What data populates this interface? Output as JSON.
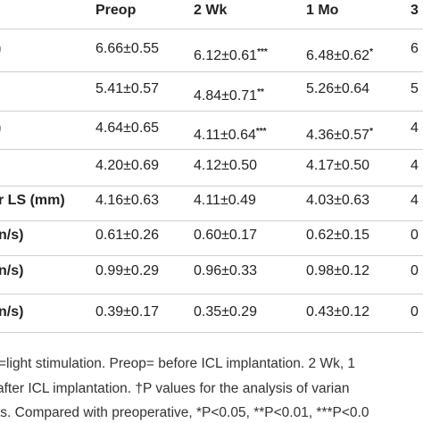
{
  "table": {
    "header": [
      "Preop",
      "2 Wk",
      "1 Mo",
      "3"
    ],
    "rows": [
      {
        "label": ")",
        "cells": [
          {
            "text": "6.66±0.55"
          },
          {
            "text": "6.12±0.61",
            "sup": "***"
          },
          {
            "text": "6.48±0.62",
            "sup": "*"
          },
          {
            "text": "6"
          }
        ]
      },
      {
        "cells": [
          {
            "text": "5.41±0.57"
          },
          {
            "text": "4.84±0.71",
            "sup": "**"
          },
          {
            "text": "5.26±0.64"
          },
          {
            "text": "5"
          }
        ]
      },
      {
        "label": ")",
        "cells": [
          {
            "text": "4.64±0.65"
          },
          {
            "text": "4.11±0.64",
            "sup": "***"
          },
          {
            "text": "4.36±0.57",
            "sup": "*"
          },
          {
            "text": "4"
          }
        ]
      },
      {
        "cells": [
          {
            "text": "4.20±0.69"
          },
          {
            "text": "4.12±0.50"
          },
          {
            "text": "4.17±0.50"
          },
          {
            "text": "4"
          }
        ]
      },
      {
        "label": "r LS (mm)",
        "cells": [
          {
            "text": "4.16±0.63"
          },
          {
            "text": "4.11±0.49"
          },
          {
            "text": "4.03±0.63"
          },
          {
            "text": "4"
          }
        ]
      },
      {
        "label": "n/s)",
        "cells": [
          {
            "text": "0.61±0.26"
          },
          {
            "text": "0.60±0.17"
          },
          {
            "text": "0.62±0.15"
          },
          {
            "text": "0"
          }
        ]
      },
      {
        "label": "n/s)",
        "cells": [
          {
            "text": "0.99±0.29"
          },
          {
            "text": "0.96±0.33"
          },
          {
            "text": "0.98±0.12"
          },
          {
            "text": "0"
          }
        ]
      },
      {
        "label": "n/s)",
        "cells": [
          {
            "text": "0.39±0.17"
          },
          {
            "text": "0.35±0.29"
          },
          {
            "text": "0.43±0.12"
          },
          {
            "text": "0"
          }
        ]
      }
    ]
  },
  "footnote": [
    "=light stimulation. Preop= before ICL implantation. 2 Wk, 1",
    "after ICL implantation. †P values for the analysis of varian",
    "ts. Compared with preoperative, *P<0.05, **P<0.01, ***P<0.0"
  ]
}
